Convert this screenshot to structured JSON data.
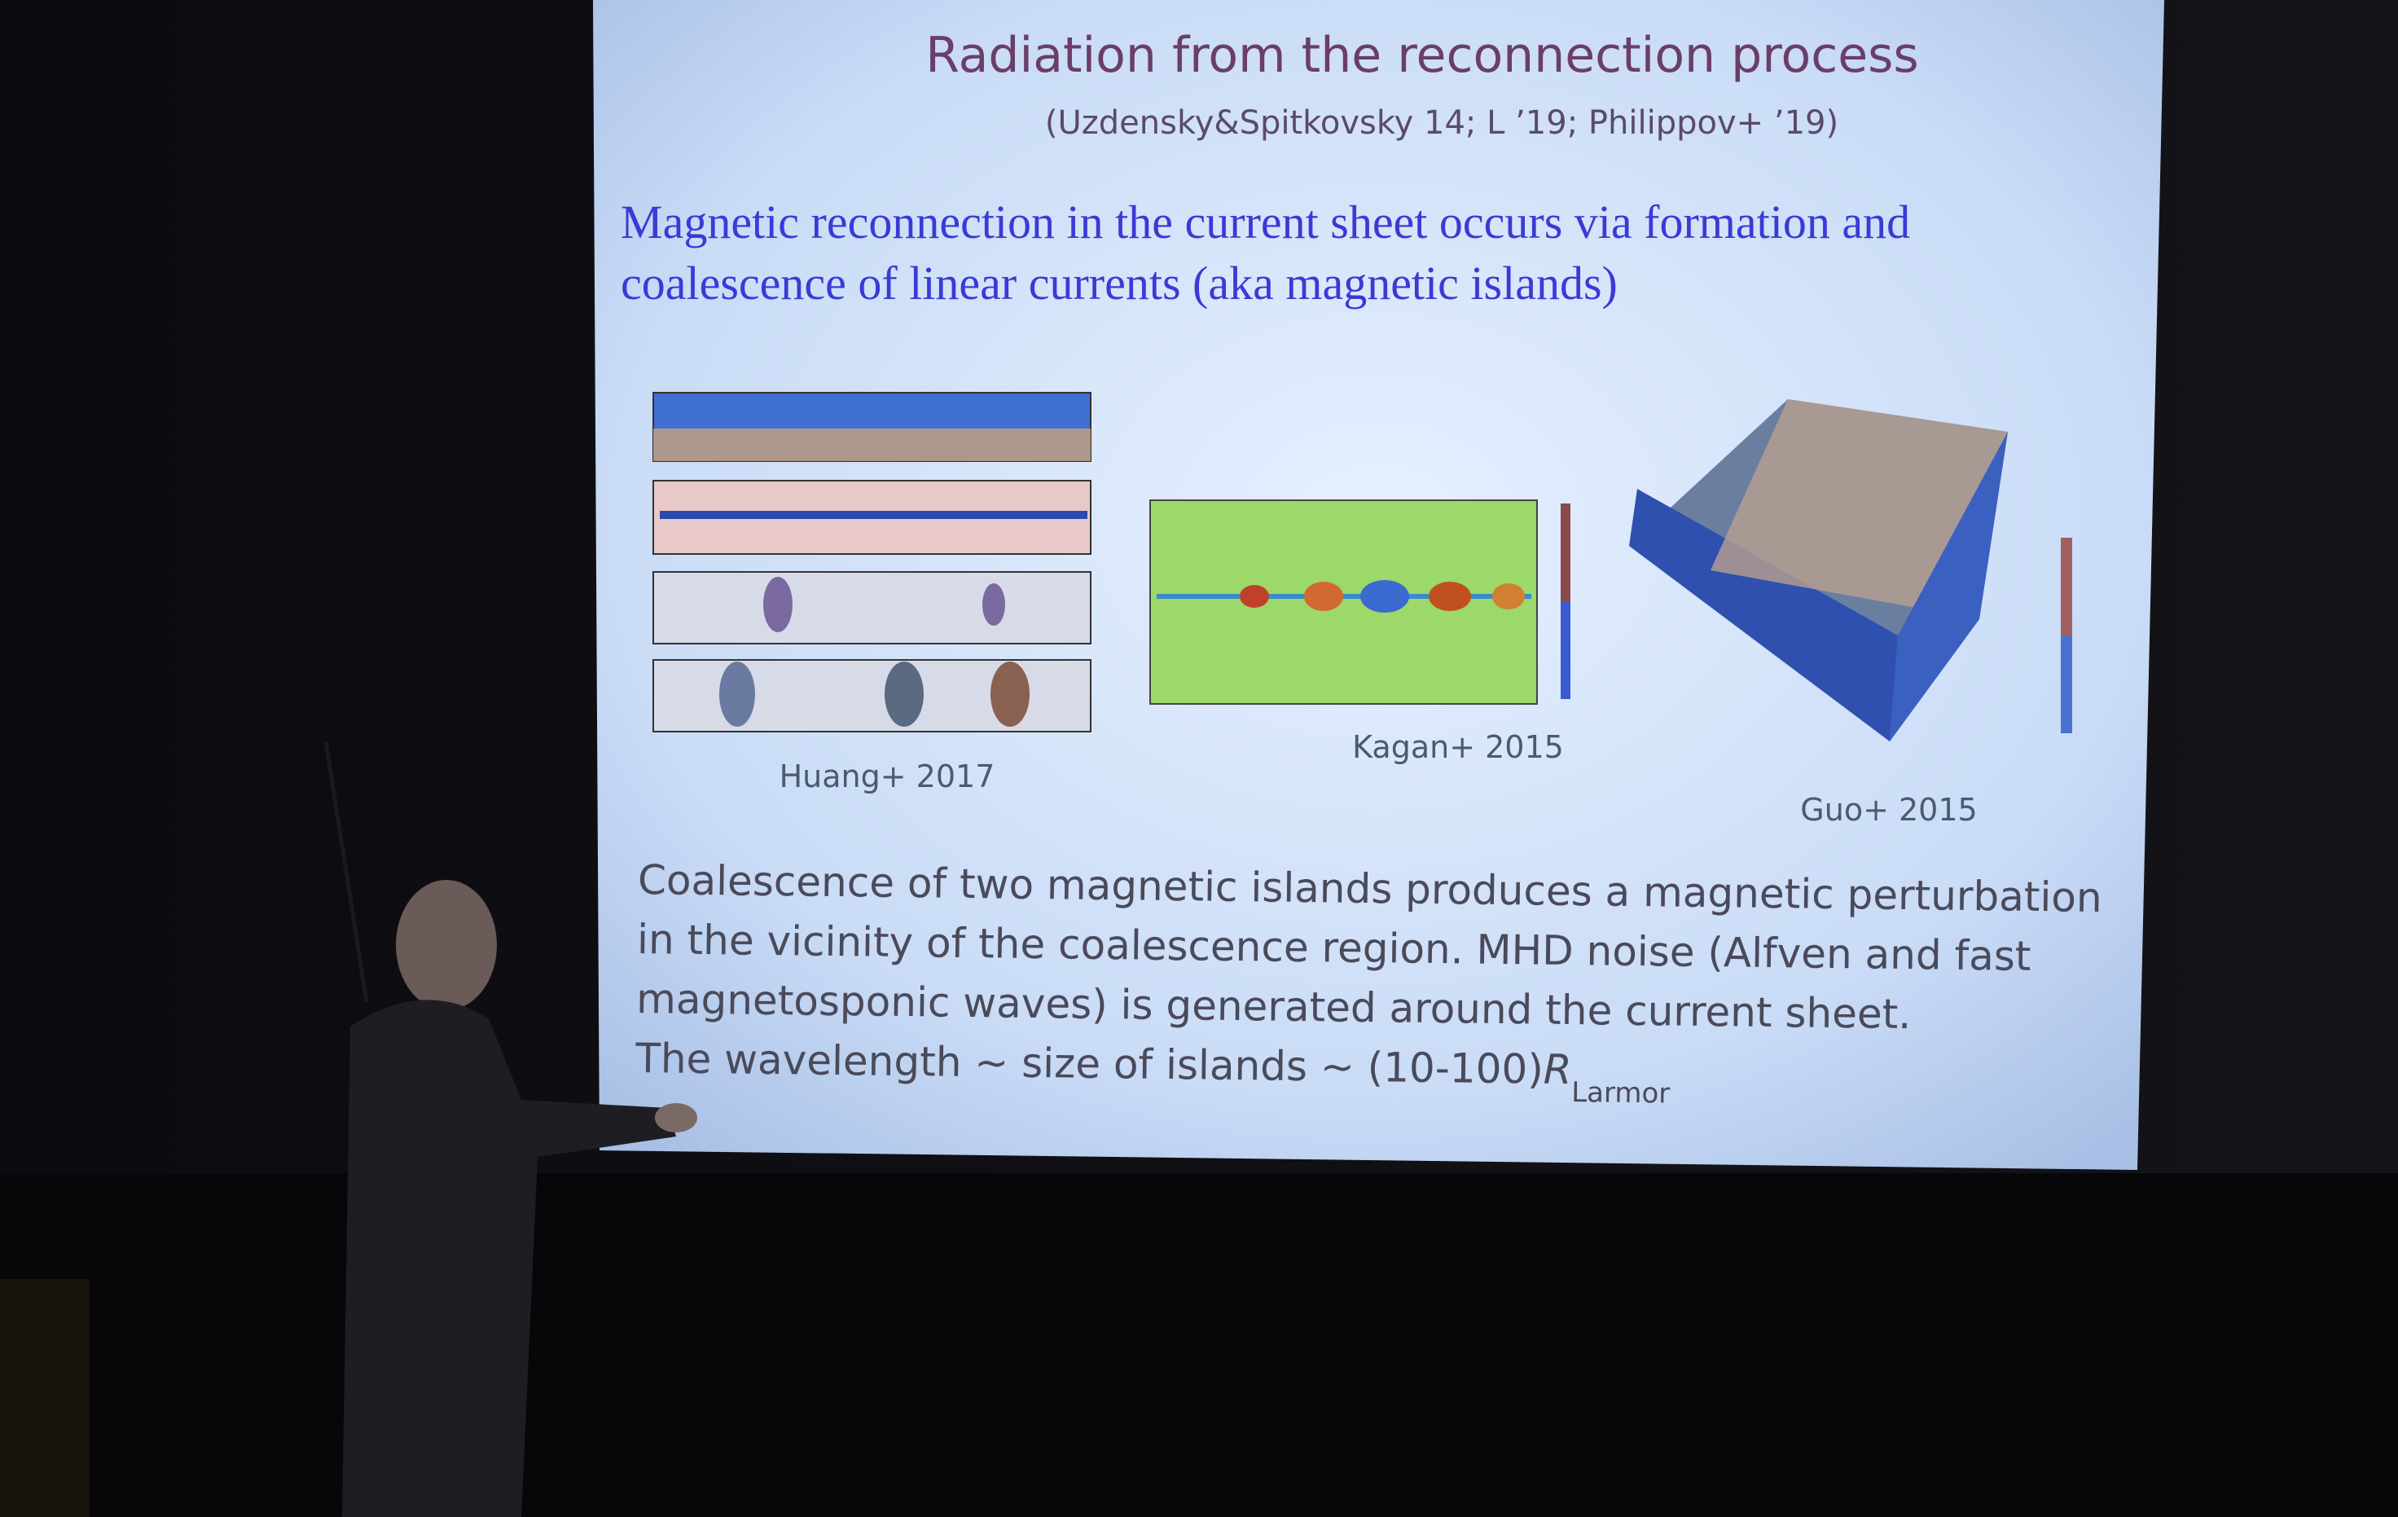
{
  "slide": {
    "title": "Radiation from the reconnection process",
    "citation": "(Uzdensky&Spitkovsky 14; L ’19; Philippov+ ’19)",
    "heading": [
      "Magnetic reconnection in the current sheet occurs via formation and",
      "coalescence of linear currents (aka magnetic islands)"
    ],
    "figures": [
      {
        "caption": "Huang+ 2017"
      },
      {
        "caption": "Kagan+ 2015"
      },
      {
        "caption": "Guo+ 2015"
      }
    ],
    "body": [
      "Coalescence of two magnetic islands produces a magnetic perturbation",
      "in the vicinity of the coalescence region. MHD noise (Alfven and fast",
      "magnetosponic waves) is generated around the current sheet."
    ],
    "last_line": {
      "text": "The wavelength ~ size of islands ~ (10-100)",
      "symbol": "R",
      "subscript": "Larmor"
    }
  }
}
